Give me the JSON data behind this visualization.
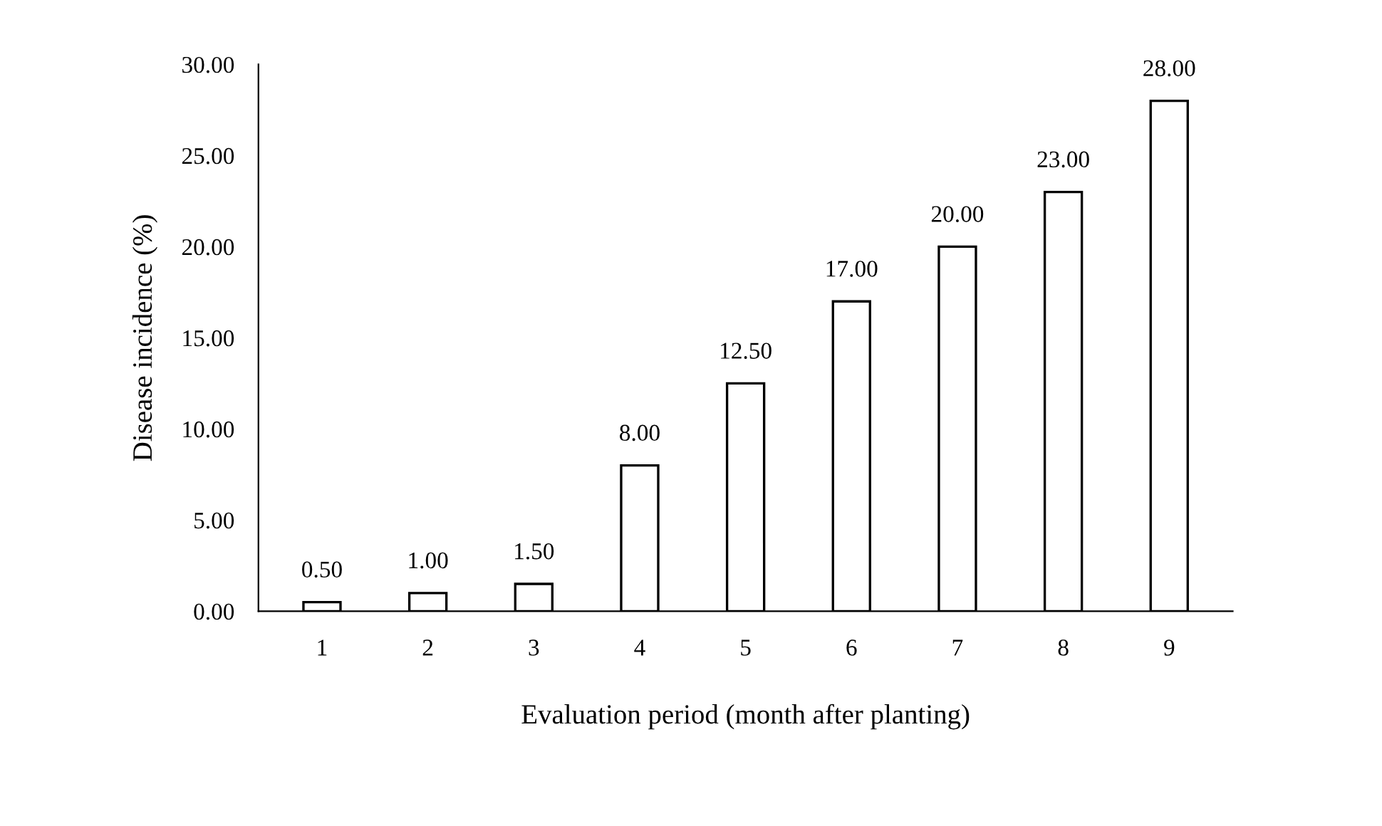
{
  "chart_data": {
    "type": "bar",
    "xlabel": "Evaluation period (month after planting)",
    "ylabel": "Disease incidence (%)",
    "categories": [
      "1",
      "2",
      "3",
      "4",
      "5",
      "6",
      "7",
      "8",
      "9"
    ],
    "values": [
      0.5,
      1,
      1.5,
      8,
      12.5,
      17,
      20,
      23,
      28
    ],
    "value_labels": [
      "0.50",
      "1.00",
      "1.50",
      "8.00",
      "12.50",
      "17.00",
      "20.00",
      "23.00",
      "28.00"
    ],
    "color": "#ffffff",
    "ylim": [
      0,
      30
    ],
    "yticks": [
      {
        "value": 0,
        "label": "0.00"
      },
      {
        "value": 5,
        "label": "5.00"
      },
      {
        "value": 10,
        "label": "10.00"
      },
      {
        "value": 15,
        "label": "15.00"
      },
      {
        "value": 20,
        "label": "20.00"
      },
      {
        "value": 25,
        "label": "25.00"
      },
      {
        "value": 30,
        "label": "30.00"
      }
    ],
    "grid": false,
    "legend": false
  }
}
